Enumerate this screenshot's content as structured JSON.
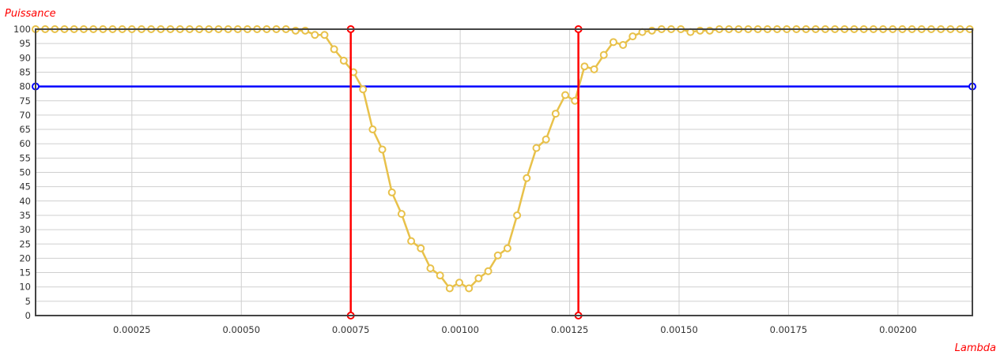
{
  "chart_data": {
    "type": "line",
    "title": "",
    "xlabel": "Lambda",
    "ylabel": "Puissance",
    "xlim": [
      3e-05,
      0.00217
    ],
    "ylim": [
      0,
      100
    ],
    "grid": true,
    "x_ticks": [
      "0.00025",
      "0.00050",
      "0.00075",
      "0.00100",
      "0.00125",
      "0.00150",
      "0.00175",
      "0.00200"
    ],
    "x_tick_values": [
      0.00025,
      0.0005,
      0.00075,
      0.001,
      0.00125,
      0.0015,
      0.00175,
      0.002
    ],
    "y_ticks": [
      "0",
      "5",
      "10",
      "15",
      "20",
      "25",
      "30",
      "35",
      "40",
      "45",
      "50",
      "55",
      "60",
      "65",
      "70",
      "75",
      "80",
      "85",
      "90",
      "95",
      "100"
    ],
    "y_tick_values": [
      0,
      5,
      10,
      15,
      20,
      25,
      30,
      35,
      40,
      45,
      50,
      55,
      60,
      65,
      70,
      75,
      80,
      85,
      90,
      95,
      100
    ],
    "colors": {
      "curve": "#e8c14a",
      "threshold": "#0000ff",
      "markers": "#ff0000",
      "axis_label": "#ff0000",
      "frame": "#444444"
    },
    "series": [
      {
        "x": [
          3e-05,
          5.2e-05,
          7.4e-05,
          9.6e-05,
          0.000118,
          0.00014,
          0.000162,
          0.000184,
          0.000206,
          0.000228,
          0.00025,
          0.000272,
          0.000294,
          0.000316,
          0.000338,
          0.00036,
          0.000382,
          0.000404,
          0.000426,
          0.000448,
          0.00047,
          0.000492,
          0.000514,
          0.000536,
          0.000558,
          0.00058,
          0.000602,
          0.000624,
          0.000646,
          0.000668,
          0.00069,
          0.000712,
          0.000734,
          0.000756,
          0.000778,
          0.0008,
          0.000822,
          0.000844,
          0.000866,
          0.000888,
          0.00091,
          0.000932,
          0.000954,
          0.000976,
          0.000998,
          0.00102,
          0.001042,
          0.001064,
          0.001086,
          0.001108,
          0.00113,
          0.001152,
          0.001174,
          0.001196,
          0.001218,
          0.00124,
          0.001262,
          0.001284,
          0.001306,
          0.001328,
          0.00135,
          0.001372,
          0.001394,
          0.001416,
          0.001438,
          0.00146,
          0.001482,
          0.001504,
          0.001526,
          0.001548,
          0.00157,
          0.001592,
          0.001614,
          0.001636,
          0.001658,
          0.00168,
          0.001702,
          0.001724,
          0.001746,
          0.001768,
          0.00179,
          0.001812,
          0.001834,
          0.001856,
          0.001878,
          0.0019,
          0.001922,
          0.001944,
          0.001966,
          0.001988,
          0.00201,
          0.002032,
          0.002054,
          0.002076,
          0.002098,
          0.00212,
          0.002142,
          0.002164
        ],
        "y": [
          100,
          100,
          100,
          100,
          100,
          100,
          100,
          100,
          100,
          100,
          100,
          100,
          100,
          100,
          100,
          100,
          100,
          100,
          100,
          100,
          100,
          100,
          100,
          100,
          100,
          100,
          100,
          99.5,
          99.5,
          98,
          98,
          93,
          89,
          85,
          79,
          65,
          58,
          43,
          35.5,
          26,
          23.5,
          16.5,
          14,
          9.5,
          11.5,
          9.5,
          13,
          15.5,
          21,
          23.5,
          35,
          48,
          58.5,
          61.5,
          70.5,
          77,
          75,
          87,
          86,
          91,
          95.5,
          94.5,
          97.5,
          99,
          99.5,
          100,
          100,
          100,
          99,
          99.5,
          99.5,
          100,
          100,
          100,
          100,
          100,
          100,
          100,
          100,
          100,
          100,
          100,
          100,
          100,
          100,
          100,
          100,
          100,
          100,
          100,
          100,
          100,
          100,
          100,
          100,
          100,
          100,
          100
        ]
      }
    ],
    "threshold_line": {
      "y": 80
    },
    "vertical_markers": [
      {
        "x": 0.00075
      },
      {
        "x": 0.00127
      }
    ]
  }
}
